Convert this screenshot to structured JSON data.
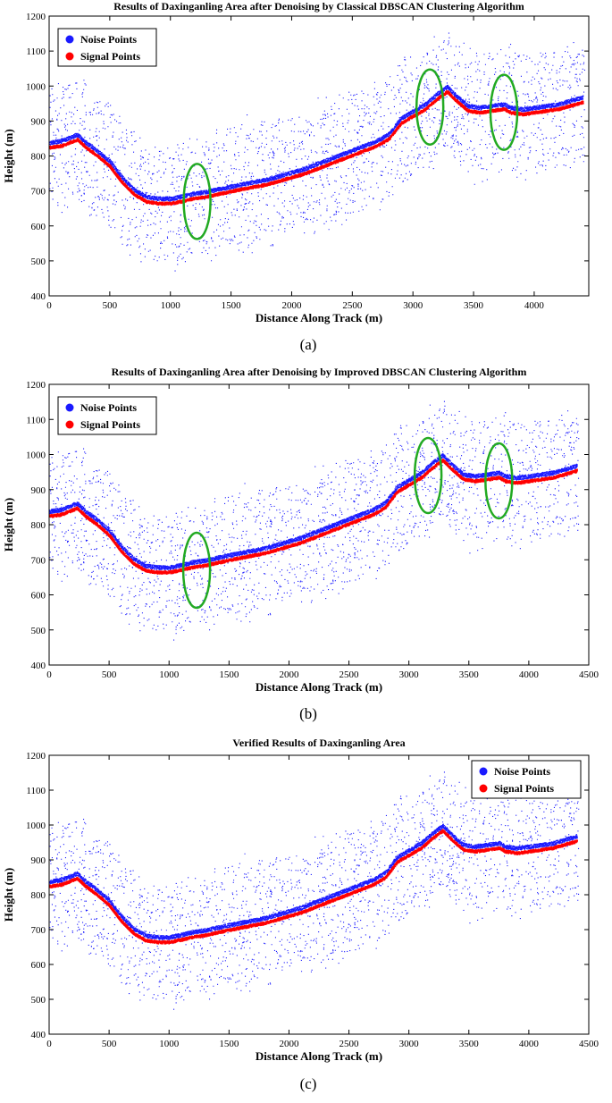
{
  "figure": {
    "panel_labels": [
      "(a)",
      "(b)",
      "(c)"
    ]
  },
  "colors": {
    "noise": "#1a1aff",
    "signal": "#ff0000",
    "highlight_ellipse": "#22aa22"
  },
  "chart_data": [
    {
      "type": "scatter",
      "title": "Results of Daxinganling Area after Denoising by Classical DBSCAN Clustering Algorithm",
      "xlabel": "Distance Along Track (m)",
      "ylabel": "Height (m)",
      "xlim": [
        0,
        4450
      ],
      "ylim": [
        400,
        1200
      ],
      "xticks": [
        0,
        500,
        1000,
        1500,
        2000,
        2500,
        3000,
        3500,
        4000
      ],
      "yticks": [
        400,
        500,
        600,
        700,
        800,
        900,
        1000,
        1100,
        1200
      ],
      "legend": {
        "position": "top-left",
        "entries": [
          "Noise Points",
          "Signal Points"
        ]
      },
      "grid": false,
      "series": [
        {
          "name": "Noise Points",
          "marker": "dot",
          "distribution": "scattered about the ground profile, height spread about 350 m"
        },
        {
          "name": "Signal Points",
          "marker": "dot",
          "profile_x": [
            0,
            100,
            230,
            300,
            400,
            500,
            600,
            700,
            800,
            900,
            1000,
            1100,
            1200,
            1300,
            1500,
            1800,
            2100,
            2400,
            2700,
            2800,
            2900,
            3000,
            3100,
            3200,
            3280,
            3350,
            3450,
            3550,
            3650,
            3750,
            3800,
            3900,
            4000,
            4100,
            4200,
            4300,
            4400
          ],
          "profile_y": [
            825,
            830,
            848,
            825,
            800,
            770,
            725,
            690,
            670,
            665,
            665,
            672,
            680,
            685,
            700,
            720,
            750,
            790,
            830,
            850,
            895,
            915,
            935,
            965,
            985,
            960,
            930,
            925,
            930,
            935,
            925,
            920,
            925,
            930,
            935,
            945,
            955
          ]
        }
      ],
      "annotations": [
        {
          "shape": "ellipse",
          "x": 1220,
          "y": 670
        },
        {
          "shape": "ellipse",
          "x": 3140,
          "y": 940
        },
        {
          "shape": "ellipse",
          "x": 3750,
          "y": 925
        }
      ]
    },
    {
      "type": "scatter",
      "title": "Results of Daxinganling Area after Denoising by Improved DBSCAN Clustering Algorithm",
      "xlabel": "Distance Along Track (m)",
      "ylabel": "Height (m)",
      "xlim": [
        0,
        4500
      ],
      "ylim": [
        400,
        1200
      ],
      "xticks": [
        0,
        500,
        1000,
        1500,
        2000,
        2500,
        3000,
        3500,
        4000,
        4500
      ],
      "yticks": [
        400,
        500,
        600,
        700,
        800,
        900,
        1000,
        1100,
        1200
      ],
      "legend": {
        "position": "top-left",
        "entries": [
          "Noise Points",
          "Signal Points"
        ]
      },
      "grid": false,
      "series": [
        {
          "name": "Noise Points",
          "marker": "dot",
          "distribution": "scattered about the ground profile, height spread about 350 m"
        },
        {
          "name": "Signal Points",
          "marker": "dot",
          "profile_x": [
            0,
            100,
            230,
            300,
            400,
            500,
            600,
            700,
            800,
            900,
            1000,
            1100,
            1200,
            1300,
            1500,
            1800,
            2100,
            2400,
            2700,
            2800,
            2900,
            3000,
            3100,
            3200,
            3280,
            3350,
            3450,
            3550,
            3650,
            3750,
            3800,
            3900,
            4000,
            4100,
            4200,
            4300,
            4400
          ],
          "profile_y": [
            825,
            830,
            848,
            825,
            800,
            770,
            725,
            690,
            670,
            665,
            665,
            672,
            680,
            685,
            700,
            720,
            750,
            790,
            830,
            850,
            895,
            915,
            935,
            965,
            985,
            960,
            930,
            925,
            930,
            935,
            925,
            920,
            925,
            930,
            935,
            945,
            955
          ]
        }
      ],
      "annotations": [
        {
          "shape": "ellipse",
          "x": 1230,
          "y": 670
        },
        {
          "shape": "ellipse",
          "x": 3160,
          "y": 940
        },
        {
          "shape": "ellipse",
          "x": 3750,
          "y": 925
        }
      ]
    },
    {
      "type": "scatter",
      "title": "Verified Results of Daxinganling Area",
      "xlabel": "Distance Along Track (m)",
      "ylabel": "Height (m)",
      "xlim": [
        0,
        4500
      ],
      "ylim": [
        400,
        1200
      ],
      "xticks": [
        0,
        500,
        1000,
        1500,
        2000,
        2500,
        3000,
        3500,
        4000,
        4500
      ],
      "yticks": [
        400,
        500,
        600,
        700,
        800,
        900,
        1000,
        1100,
        1200
      ],
      "legend": {
        "position": "top-right",
        "entries": [
          "Noise Points",
          "Signal Points"
        ]
      },
      "grid": false,
      "series": [
        {
          "name": "Noise Points",
          "marker": "dot",
          "distribution": "scattered about the ground profile, height spread about 350 m"
        },
        {
          "name": "Signal Points",
          "marker": "dot",
          "profile_x": [
            0,
            100,
            230,
            300,
            400,
            500,
            600,
            700,
            800,
            900,
            1000,
            1100,
            1200,
            1300,
            1500,
            1800,
            2100,
            2400,
            2700,
            2800,
            2900,
            3000,
            3100,
            3200,
            3280,
            3350,
            3450,
            3550,
            3650,
            3750,
            3800,
            3900,
            4000,
            4100,
            4200,
            4300,
            4400
          ],
          "profile_y": [
            825,
            830,
            848,
            825,
            800,
            770,
            725,
            690,
            670,
            665,
            665,
            672,
            680,
            685,
            700,
            720,
            750,
            790,
            830,
            850,
            895,
            915,
            935,
            965,
            985,
            960,
            930,
            925,
            930,
            935,
            925,
            920,
            925,
            930,
            935,
            945,
            955
          ]
        }
      ],
      "annotations": []
    }
  ]
}
